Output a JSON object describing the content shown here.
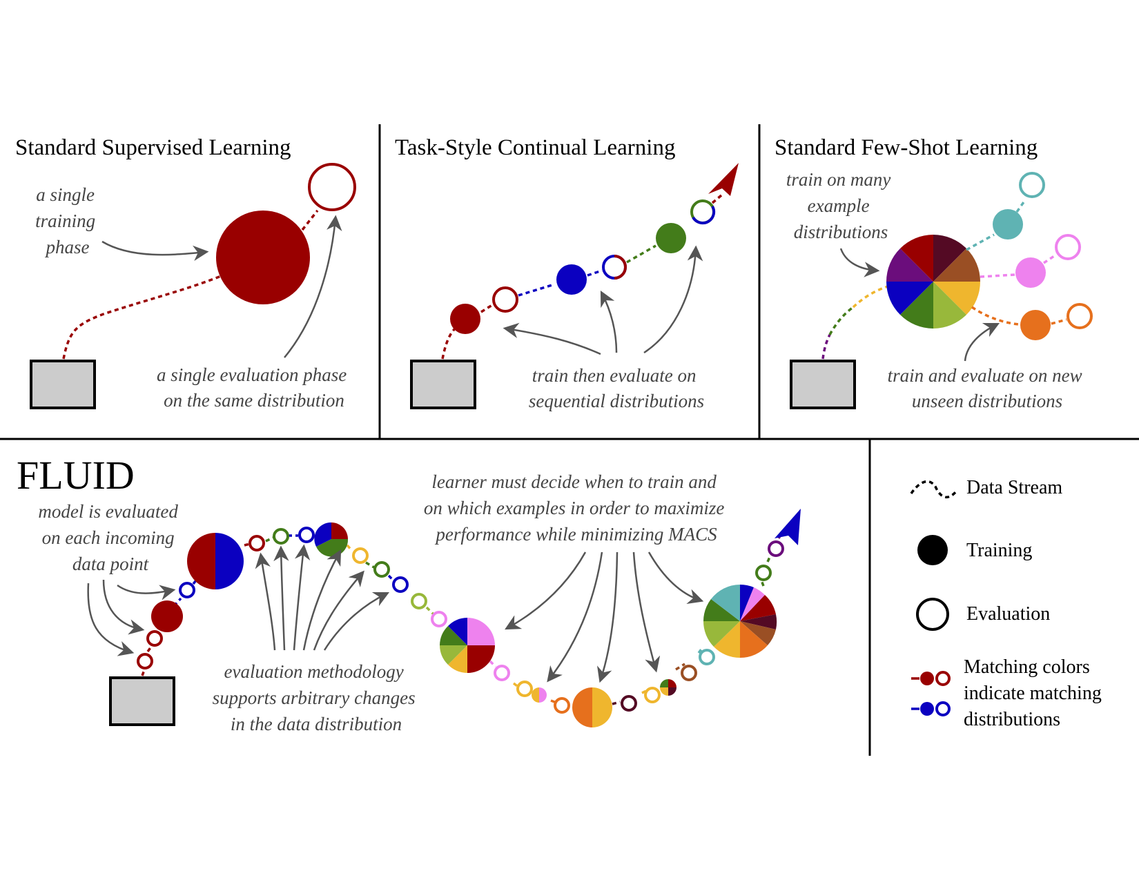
{
  "colors": {
    "dark_red": "#990000",
    "blue": "#0b00c0",
    "green": "#437c1a",
    "teal": "#5fb3b3",
    "pink": "#ee82ee",
    "orange": "#e6701d",
    "yellow": "#efb62e",
    "olive": "#98b83b",
    "maroon": "#540a24",
    "brown": "#9a4f24",
    "purple": "#6b0d7c",
    "gray_box": "#cccccc",
    "arrow_gray": "#555555"
  },
  "panels": {
    "supervised": {
      "title": "Standard Supervised Learning",
      "note_training": [
        "a single",
        "training",
        "phase"
      ],
      "note_eval": [
        "a single evaluation phase",
        "on the same distribution"
      ]
    },
    "continual": {
      "title": "Task-Style Continual Learning",
      "note": [
        "train then evaluate on",
        "sequential distributions"
      ]
    },
    "fewshot": {
      "title": "Standard Few-Shot Learning",
      "note_train": [
        "train on many",
        "example",
        "distributions"
      ],
      "note_eval": [
        "train and evaluate on new",
        "unseen distributions"
      ]
    },
    "fluid": {
      "title": "FLUID",
      "note_model": [
        "model is evaluated",
        "on each incoming",
        "data point"
      ],
      "note_learner": [
        "learner must decide when to train and",
        "on which examples in order to maximize",
        "performance while minimizing MACS"
      ],
      "note_method": [
        "evaluation methodology",
        "supports arbitrary changes",
        "in the data distribution"
      ]
    }
  },
  "legend": {
    "data_stream": "Data Stream",
    "training": "Training",
    "evaluation": "Evaluation",
    "matching": [
      "Matching colors",
      "indicate matching",
      "distributions"
    ]
  }
}
